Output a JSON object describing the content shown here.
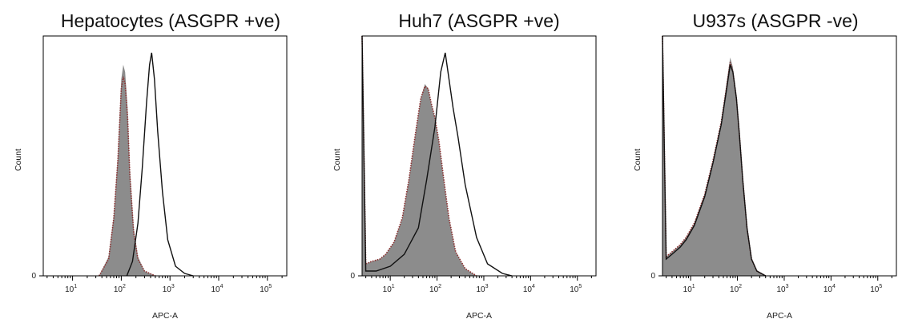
{
  "figure": {
    "colors": {
      "control_fill": "#8c8c8c",
      "control_outline": "#8b2f2f",
      "stained_line": "#111111",
      "axis": "#000000"
    }
  },
  "chart_data": [
    {
      "type": "area",
      "title": "Hepatocytes (ASGPR +ve)",
      "xlabel": "APC-A",
      "ylabel": "Count",
      "x_scale": "log",
      "xlim": [
        2.5,
        250000
      ],
      "x_ticks": [
        {
          "value": 10,
          "base": "10",
          "exp": "1"
        },
        {
          "value": 100,
          "base": "10",
          "exp": "2"
        },
        {
          "value": 1000,
          "base": "10",
          "exp": "3"
        },
        {
          "value": 10000,
          "base": "10",
          "exp": "4"
        },
        {
          "value": 100000,
          "base": "10",
          "exp": "5"
        }
      ],
      "y_tick_label": "0",
      "ylim": [
        0,
        100
      ],
      "series": [
        {
          "role": "control_filled",
          "x": [
            35,
            55,
            70,
            85,
            100,
            110,
            120,
            135,
            150,
            180,
            220,
            300,
            500
          ],
          "y": [
            0,
            8,
            25,
            50,
            82,
            88,
            85,
            70,
            45,
            20,
            8,
            2,
            0
          ]
        },
        {
          "role": "control_dotted",
          "x": [
            35,
            55,
            70,
            85,
            100,
            110,
            120,
            135,
            150,
            180,
            220,
            300,
            500
          ],
          "y": [
            0,
            7,
            24,
            48,
            78,
            83,
            80,
            66,
            42,
            18,
            7,
            2,
            0
          ]
        },
        {
          "role": "stained_line",
          "x": [
            130,
            170,
            220,
            270,
            330,
            380,
            420,
            480,
            560,
            700,
            900,
            1300,
            2000,
            3000
          ],
          "y": [
            0,
            6,
            22,
            45,
            72,
            88,
            93,
            82,
            60,
            35,
            15,
            4,
            1,
            0
          ]
        }
      ]
    },
    {
      "type": "area",
      "title": "Huh7 (ASGPR +ve)",
      "xlabel": "APC-A",
      "ylabel": "Count",
      "x_scale": "log",
      "xlim": [
        2.5,
        250000
      ],
      "x_ticks": [
        {
          "value": 10,
          "base": "10",
          "exp": "1"
        },
        {
          "value": 100,
          "base": "10",
          "exp": "2"
        },
        {
          "value": 1000,
          "base": "10",
          "exp": "3"
        },
        {
          "value": 10000,
          "base": "10",
          "exp": "4"
        },
        {
          "value": 100000,
          "base": "10",
          "exp": "5"
        }
      ],
      "y_tick_label": "0",
      "ylim": [
        0,
        100
      ],
      "series": [
        {
          "role": "control_filled",
          "x": [
            2.5,
            3,
            4,
            6,
            8,
            12,
            18,
            25,
            35,
            45,
            55,
            65,
            75,
            90,
            110,
            140,
            180,
            250,
            400,
            700
          ],
          "y": [
            100,
            5,
            6,
            7,
            9,
            14,
            24,
            40,
            60,
            74,
            80,
            78,
            72,
            66,
            56,
            40,
            24,
            10,
            3,
            0
          ]
        },
        {
          "role": "control_dotted",
          "x": [
            2.5,
            3,
            4,
            6,
            8,
            12,
            18,
            25,
            35,
            45,
            55,
            65,
            75,
            90,
            110,
            140,
            180,
            250,
            400,
            700
          ],
          "y": [
            100,
            5,
            6,
            7,
            9,
            14,
            24,
            40,
            60,
            74,
            79,
            78,
            72,
            66,
            56,
            40,
            24,
            10,
            3,
            0
          ]
        },
        {
          "role": "stained_line",
          "x": [
            2.5,
            3,
            5,
            10,
            20,
            40,
            60,
            90,
            120,
            150,
            180,
            220,
            280,
            400,
            700,
            1200,
            2500,
            4000
          ],
          "y": [
            100,
            2,
            2,
            4,
            9,
            20,
            40,
            62,
            85,
            93,
            82,
            70,
            58,
            38,
            16,
            5,
            1,
            0
          ]
        }
      ]
    },
    {
      "type": "area",
      "title": "U937s (ASGPR -ve)",
      "xlabel": "APC-A",
      "ylabel": "Count",
      "x_scale": "log",
      "xlim": [
        2.5,
        250000
      ],
      "x_ticks": [
        {
          "value": 10,
          "base": "10",
          "exp": "1"
        },
        {
          "value": 100,
          "base": "10",
          "exp": "2"
        },
        {
          "value": 1000,
          "base": "10",
          "exp": "3"
        },
        {
          "value": 10000,
          "base": "10",
          "exp": "4"
        },
        {
          "value": 100000,
          "base": "10",
          "exp": "5"
        }
      ],
      "y_tick_label": "0",
      "ylim": [
        0,
        100
      ],
      "series": [
        {
          "role": "control_filled",
          "x": [
            2.5,
            3,
            4,
            6,
            8,
            12,
            20,
            30,
            45,
            60,
            70,
            80,
            95,
            110,
            130,
            160,
            200,
            260,
            400
          ],
          "y": [
            100,
            8,
            10,
            13,
            16,
            22,
            34,
            48,
            64,
            82,
            91,
            87,
            75,
            60,
            40,
            20,
            7,
            2,
            0
          ]
        },
        {
          "role": "control_dotted",
          "x": [
            2.5,
            3,
            4,
            6,
            8,
            12,
            20,
            30,
            45,
            60,
            70,
            80,
            95,
            110,
            130,
            160,
            200,
            260,
            400
          ],
          "y": [
            100,
            8,
            10,
            13,
            16,
            22,
            34,
            48,
            64,
            80,
            89,
            85,
            74,
            59,
            40,
            20,
            7,
            2,
            0
          ]
        },
        {
          "role": "stained_line",
          "x": [
            2.5,
            3,
            4,
            6,
            8,
            12,
            20,
            30,
            45,
            60,
            70,
            80,
            95,
            110,
            130,
            160,
            200,
            260,
            400
          ],
          "y": [
            100,
            7,
            9,
            12,
            15,
            21,
            33,
            47,
            63,
            79,
            88,
            85,
            74,
            59,
            40,
            20,
            7,
            2,
            0
          ]
        }
      ]
    }
  ]
}
